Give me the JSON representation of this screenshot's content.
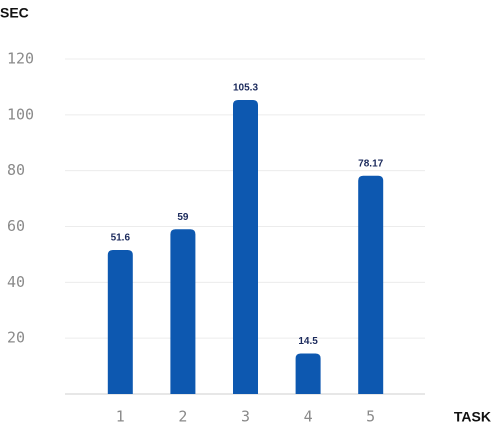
{
  "chart_data": {
    "type": "bar",
    "y_label": "SEC",
    "x_label": "TASK",
    "categories": [
      "1",
      "2",
      "3",
      "4",
      "5"
    ],
    "values": [
      51.6,
      59,
      105.3,
      14.5,
      78.17
    ],
    "color": "#0d58b0",
    "ylim": [
      0,
      120
    ],
    "yticks": [
      20,
      40,
      60,
      80,
      100,
      120
    ],
    "grid": true
  }
}
